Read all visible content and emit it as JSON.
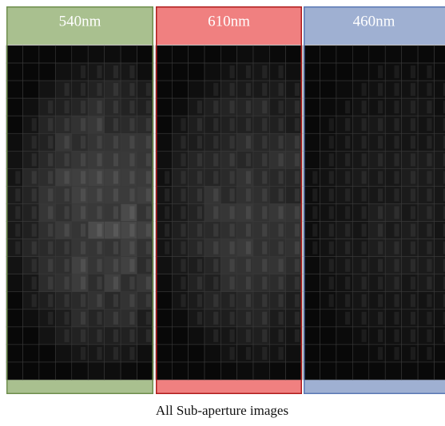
{
  "panels": [
    {
      "label": "540nm"
    },
    {
      "label": "610nm"
    },
    {
      "label": "460nm"
    }
  ],
  "caption": "All Sub-aperture images"
}
